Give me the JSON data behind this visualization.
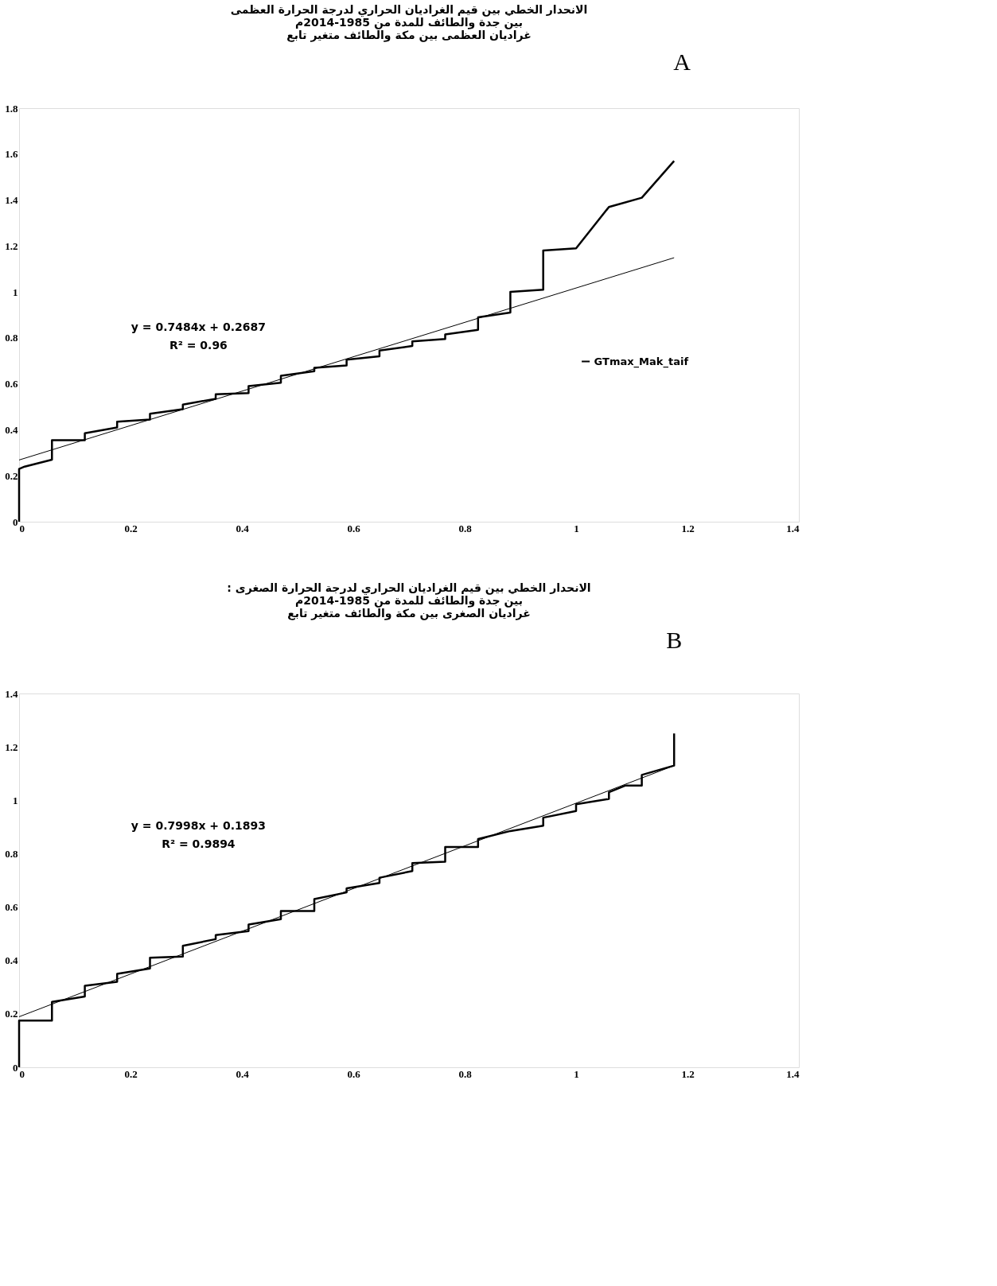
{
  "chart_data": [
    {
      "type": "line",
      "title": "الانحدار الخطي بين قيم الغراديان الحراري لدرجة الحرارة العظمى\nبين جدة والطائف للمدة من 1985-2014م\nغراديان العظمى بين مكة والطائف متغير تابع",
      "annotations": [
        "A",
        "y = 0.7484x + 0.2687",
        "R² = 0.96"
      ],
      "xlim": [
        0,
        1.4
      ],
      "xticks": [
        0,
        0.2,
        0.4,
        0.6,
        0.8,
        1,
        1.2,
        1.4
      ],
      "ylim": [
        0,
        1.8
      ],
      "yticks": [
        0,
        0.2,
        0.4,
        0.6,
        0.8,
        1,
        1.2,
        1.4,
        1.6,
        1.8
      ],
      "grid": false,
      "legend": "right",
      "series": [
        {
          "name": "GTmax_Mak_taif",
          "color": "#000000",
          "x": [
            0,
            0,
            0.01,
            0.059,
            0.059,
            0.118,
            0.118,
            0.176,
            0.176,
            0.235,
            0.235,
            0.294,
            0.294,
            0.353,
            0.353,
            0.412,
            0.412,
            0.47,
            0.47,
            0.53,
            0.53,
            0.588,
            0.588,
            0.647,
            0.647,
            0.706,
            0.706,
            0.765,
            0.765,
            0.824,
            0.824,
            0.882,
            0.882,
            0.941,
            0.941,
            1.0,
            1.059,
            1.118,
            1.176
          ],
          "values": [
            0,
            0.23,
            0.24,
            0.27,
            0.355,
            0.355,
            0.385,
            0.41,
            0.435,
            0.445,
            0.47,
            0.49,
            0.51,
            0.535,
            0.555,
            0.56,
            0.59,
            0.605,
            0.635,
            0.655,
            0.67,
            0.68,
            0.705,
            0.72,
            0.745,
            0.765,
            0.785,
            0.795,
            0.815,
            0.835,
            0.89,
            0.91,
            1.0,
            1.01,
            1.18,
            1.19,
            1.37,
            1.41,
            1.57
          ]
        },
        {
          "type": "line",
          "color": "#000000",
          "marker": "none",
          "x": [
            0,
            1.176
          ],
          "values": [
            0.2687,
            1.149
          ]
        }
      ]
    },
    {
      "type": "line",
      "title": ": الانحدار الخطي بين قيم الغراديان الحراري لدرجة الحرارة الصغرى\nبين جدة والطائف للمدة من 1985-2014م\nغراديان الصغرى بين مكة والطائف متغير تابع",
      "annotations": [
        "B",
        "y = 0.7998x + 0.1893",
        "R² = 0.9894"
      ],
      "xlim": [
        0,
        1.4
      ],
      "xticks": [
        0,
        0.2,
        0.4,
        0.6,
        0.8,
        1,
        1.2,
        1.4
      ],
      "ylim": [
        0,
        1.4
      ],
      "yticks": [
        0,
        0.2,
        0.4,
        0.6,
        0.8,
        1,
        1.2,
        1.4
      ],
      "grid": false,
      "series": [
        {
          "color": "#000000",
          "x": [
            0,
            0,
            0.059,
            0.059,
            0.118,
            0.118,
            0.176,
            0.176,
            0.235,
            0.235,
            0.294,
            0.294,
            0.353,
            0.353,
            0.412,
            0.412,
            0.47,
            0.47,
            0.53,
            0.53,
            0.588,
            0.588,
            0.647,
            0.647,
            0.706,
            0.706,
            0.765,
            0.765,
            0.824,
            0.824,
            0.882,
            0.941,
            0.941,
            1.0,
            1.0,
            1.059,
            1.059,
            1.088,
            1.118,
            1.118,
            1.176,
            1.176
          ],
          "values": [
            0,
            0.175,
            0.175,
            0.245,
            0.265,
            0.305,
            0.32,
            0.35,
            0.37,
            0.41,
            0.415,
            0.455,
            0.48,
            0.495,
            0.51,
            0.535,
            0.555,
            0.585,
            0.585,
            0.63,
            0.655,
            0.67,
            0.69,
            0.71,
            0.735,
            0.765,
            0.77,
            0.825,
            0.825,
            0.855,
            0.885,
            0.905,
            0.935,
            0.96,
            0.985,
            1.005,
            1.03,
            1.055,
            1.055,
            1.095,
            1.13,
            1.25
          ]
        },
        {
          "type": "line",
          "color": "#000000",
          "marker": "none",
          "x": [
            0,
            1.176
          ],
          "values": [
            0.1893,
            1.13
          ]
        }
      ]
    }
  ]
}
